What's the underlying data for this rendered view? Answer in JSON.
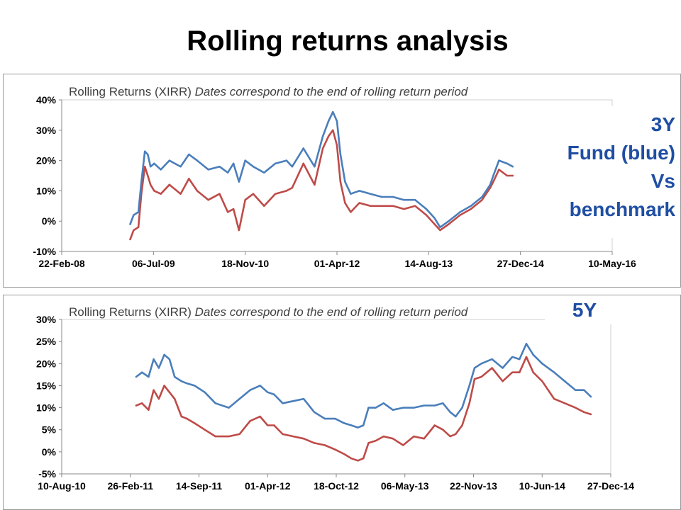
{
  "page": {
    "title": "Rolling returns analysis"
  },
  "callouts": {
    "three_year": {
      "line1": "3Y",
      "line2": "Fund (blue)",
      "line3": "Vs",
      "line4": "benchmark"
    },
    "five_year": {
      "label": "5Y"
    }
  },
  "colors": {
    "fund": "#4a7ebb",
    "benchmark": "#be4b48",
    "axis": "#888888",
    "text": "#000000",
    "chart_title": "#404040",
    "callout_text": "#1f4ea3"
  },
  "chart_data": [
    {
      "type": "line",
      "title": "Rolling Returns (XIRR)",
      "subtitle": "Dates correspond to the end of rolling return period",
      "x_is_date": true,
      "xlim": [
        "2008-02-22",
        "2016-05-10"
      ],
      "ylim": [
        -0.1,
        0.4
      ],
      "x_ticks": [
        "22-Feb-08",
        "06-Jul-09",
        "18-Nov-10",
        "01-Apr-12",
        "14-Aug-13",
        "27-Dec-14",
        "10-May-16"
      ],
      "y_ticks": [
        "-10%",
        "0%",
        "10%",
        "20%",
        "30%",
        "40%"
      ],
      "grid": false,
      "series": [
        {
          "x": [
            "2009-03-01",
            "2009-03-20",
            "2009-04-15",
            "2009-05-01",
            "2009-05-20",
            "2009-06-05",
            "2009-06-20",
            "2009-07-10",
            "2009-08-15",
            "2009-10-01",
            "2009-12-01",
            "2010-01-15",
            "2010-03-01",
            "2010-05-01",
            "2010-07-01",
            "2010-08-15",
            "2010-09-15",
            "2010-10-15",
            "2010-11-18",
            "2011-01-01",
            "2011-03-01",
            "2011-05-01",
            "2011-07-01",
            "2011-08-01",
            "2011-10-01",
            "2011-12-01",
            "2012-01-15",
            "2012-02-15",
            "2012-03-10",
            "2012-04-01",
            "2012-04-20",
            "2012-05-15",
            "2012-06-15",
            "2012-08-01",
            "2012-10-01",
            "2012-12-01",
            "2013-02-01",
            "2013-04-01",
            "2013-06-01",
            "2013-08-01",
            "2013-09-15",
            "2013-10-15",
            "2013-12-01",
            "2014-02-01",
            "2014-04-01",
            "2014-06-01",
            "2014-07-15",
            "2014-08-01",
            "2014-09-01",
            "2014-10-15",
            "2014-11-15"
          ],
          "y": [
            -0.01,
            0.02,
            0.03,
            0.13,
            0.23,
            0.22,
            0.18,
            0.19,
            0.17,
            0.2,
            0.18,
            0.22,
            0.2,
            0.17,
            0.18,
            0.16,
            0.19,
            0.13,
            0.2,
            0.18,
            0.16,
            0.19,
            0.2,
            0.18,
            0.24,
            0.18,
            0.28,
            0.33,
            0.36,
            0.33,
            0.22,
            0.13,
            0.09,
            0.1,
            0.09,
            0.08,
            0.08,
            0.07,
            0.07,
            0.04,
            0.01,
            -0.02,
            0.0,
            0.03,
            0.05,
            0.08,
            0.12,
            0.15,
            0.2,
            0.19,
            0.18
          ]
        },
        {
          "x": [
            "2009-03-01",
            "2009-03-20",
            "2009-04-15",
            "2009-05-01",
            "2009-05-20",
            "2009-06-05",
            "2009-06-20",
            "2009-07-10",
            "2009-08-15",
            "2009-10-01",
            "2009-12-01",
            "2010-01-15",
            "2010-03-01",
            "2010-05-01",
            "2010-07-01",
            "2010-08-15",
            "2010-09-15",
            "2010-10-15",
            "2010-11-18",
            "2011-01-01",
            "2011-03-01",
            "2011-05-01",
            "2011-07-01",
            "2011-08-01",
            "2011-10-01",
            "2011-12-01",
            "2012-01-15",
            "2012-02-15",
            "2012-03-10",
            "2012-04-01",
            "2012-04-20",
            "2012-05-15",
            "2012-06-15",
            "2012-08-01",
            "2012-10-01",
            "2012-12-01",
            "2013-02-01",
            "2013-04-01",
            "2013-06-01",
            "2013-08-01",
            "2013-09-15",
            "2013-10-15",
            "2013-12-01",
            "2014-02-01",
            "2014-04-01",
            "2014-06-01",
            "2014-07-15",
            "2014-08-01",
            "2014-09-01",
            "2014-10-15",
            "2014-11-15"
          ],
          "y": [
            -0.06,
            -0.03,
            -0.02,
            0.09,
            0.18,
            0.15,
            0.12,
            0.1,
            0.09,
            0.12,
            0.09,
            0.14,
            0.1,
            0.07,
            0.09,
            0.03,
            0.04,
            -0.03,
            0.07,
            0.09,
            0.05,
            0.09,
            0.1,
            0.11,
            0.19,
            0.12,
            0.24,
            0.28,
            0.3,
            0.25,
            0.13,
            0.06,
            0.03,
            0.06,
            0.05,
            0.05,
            0.05,
            0.04,
            0.05,
            0.02,
            -0.01,
            -0.03,
            -0.01,
            0.02,
            0.04,
            0.07,
            0.11,
            0.13,
            0.17,
            0.15,
            0.15
          ]
        }
      ]
    },
    {
      "type": "line",
      "title": "Rolling Returns (XIRR)",
      "subtitle": "Dates correspond to the end of rolling return period",
      "x_is_date": true,
      "xlim": [
        "2010-08-10",
        "2014-12-27"
      ],
      "ylim": [
        -0.05,
        0.3
      ],
      "x_ticks": [
        "10-Aug-10",
        "26-Feb-11",
        "14-Sep-11",
        "01-Apr-12",
        "18-Oct-12",
        "06-May-13",
        "22-Nov-13",
        "10-Jun-14",
        "27-Dec-14"
      ],
      "y_ticks": [
        "-5%",
        "0%",
        "5%",
        "10%",
        "15%",
        "20%",
        "25%",
        "30%"
      ],
      "grid": false,
      "series": [
        {
          "x": [
            "2011-03-15",
            "2011-04-01",
            "2011-04-20",
            "2011-05-05",
            "2011-05-20",
            "2011-06-05",
            "2011-06-20",
            "2011-07-05",
            "2011-07-25",
            "2011-08-10",
            "2011-09-01",
            "2011-10-01",
            "2011-11-01",
            "2011-12-10",
            "2012-01-10",
            "2012-02-10",
            "2012-03-10",
            "2012-04-01",
            "2012-04-20",
            "2012-05-15",
            "2012-06-15",
            "2012-07-15",
            "2012-08-15",
            "2012-09-15",
            "2012-10-15",
            "2012-11-10",
            "2012-12-01",
            "2012-12-20",
            "2013-01-05",
            "2013-01-20",
            "2013-02-10",
            "2013-03-05",
            "2013-04-01",
            "2013-05-01",
            "2013-06-01",
            "2013-07-01",
            "2013-08-01",
            "2013-08-25",
            "2013-09-15",
            "2013-10-01",
            "2013-10-20",
            "2013-11-10",
            "2013-11-25",
            "2013-12-15",
            "2014-01-15",
            "2014-02-15",
            "2014-03-15",
            "2014-04-05",
            "2014-04-25",
            "2014-05-15",
            "2014-06-10",
            "2014-07-15",
            "2014-08-15",
            "2014-09-15",
            "2014-10-10",
            "2014-10-30"
          ],
          "y": [
            0.17,
            0.18,
            0.17,
            0.21,
            0.19,
            0.22,
            0.21,
            0.17,
            0.16,
            0.155,
            0.15,
            0.135,
            0.11,
            0.1,
            0.12,
            0.14,
            0.15,
            0.135,
            0.13,
            0.11,
            0.115,
            0.12,
            0.09,
            0.075,
            0.075,
            0.065,
            0.06,
            0.055,
            0.06,
            0.1,
            0.1,
            0.11,
            0.095,
            0.1,
            0.1,
            0.105,
            0.105,
            0.11,
            0.09,
            0.08,
            0.1,
            0.15,
            0.19,
            0.2,
            0.21,
            0.19,
            0.215,
            0.21,
            0.245,
            0.22,
            0.2,
            0.18,
            0.16,
            0.14,
            0.14,
            0.125
          ]
        },
        {
          "x": [
            "2011-03-15",
            "2011-04-01",
            "2011-04-20",
            "2011-05-05",
            "2011-05-20",
            "2011-06-05",
            "2011-06-20",
            "2011-07-05",
            "2011-07-25",
            "2011-08-10",
            "2011-09-01",
            "2011-10-01",
            "2011-11-01",
            "2011-12-10",
            "2012-01-10",
            "2012-02-10",
            "2012-03-10",
            "2012-04-01",
            "2012-04-20",
            "2012-05-15",
            "2012-06-15",
            "2012-07-15",
            "2012-08-15",
            "2012-09-15",
            "2012-10-15",
            "2012-11-10",
            "2012-12-01",
            "2012-12-20",
            "2013-01-05",
            "2013-01-20",
            "2013-02-10",
            "2013-03-05",
            "2013-04-01",
            "2013-05-01",
            "2013-06-01",
            "2013-07-01",
            "2013-08-01",
            "2013-08-25",
            "2013-09-15",
            "2013-10-01",
            "2013-10-20",
            "2013-11-10",
            "2013-11-25",
            "2013-12-15",
            "2014-01-15",
            "2014-02-15",
            "2014-03-15",
            "2014-04-05",
            "2014-04-25",
            "2014-05-15",
            "2014-06-10",
            "2014-07-15",
            "2014-08-15",
            "2014-09-15",
            "2014-10-10",
            "2014-10-30"
          ],
          "y": [
            0.105,
            0.11,
            0.095,
            0.14,
            0.12,
            0.15,
            0.135,
            0.12,
            0.08,
            0.075,
            0.065,
            0.05,
            0.035,
            0.035,
            0.04,
            0.07,
            0.08,
            0.06,
            0.06,
            0.04,
            0.035,
            0.03,
            0.02,
            0.015,
            0.005,
            -0.005,
            -0.015,
            -0.02,
            -0.015,
            0.02,
            0.025,
            0.035,
            0.03,
            0.015,
            0.035,
            0.03,
            0.06,
            0.05,
            0.035,
            0.04,
            0.06,
            0.11,
            0.165,
            0.17,
            0.19,
            0.16,
            0.18,
            0.18,
            0.215,
            0.18,
            0.16,
            0.12,
            0.11,
            0.1,
            0.09,
            0.085
          ]
        }
      ]
    }
  ]
}
